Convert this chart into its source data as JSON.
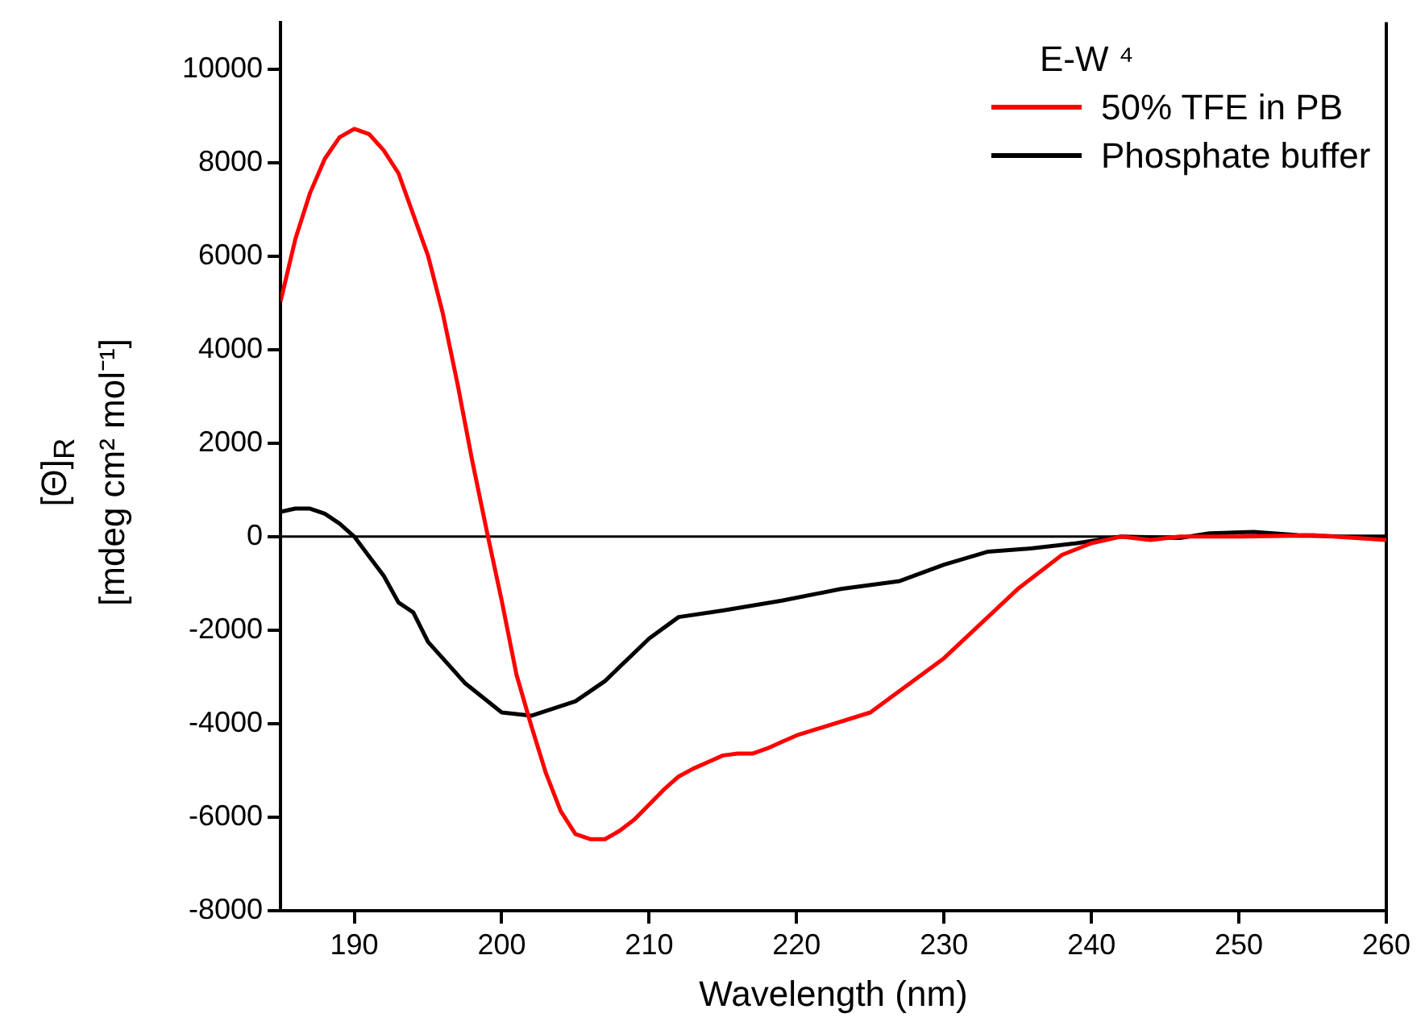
{
  "chart_data": {
    "type": "line",
    "xlabel": "Wavelength (nm)",
    "ylabel": "[Θ]$_{R}$\n[mdeg cm² mol⁻¹]",
    "legend_title": "E-W ⁴",
    "legend": "top right",
    "xlim": [
      185,
      260
    ],
    "xticks": [
      190,
      200,
      210,
      220,
      230,
      240,
      250,
      260
    ],
    "ylim": [
      -8000,
      11000
    ],
    "yticks": [
      -8000,
      -6000,
      -4000,
      -2000,
      0,
      2000,
      4000,
      6000,
      8000,
      10000
    ],
    "grid": false,
    "marker": "none",
    "line_style": "solid",
    "ref_lines": [
      {
        "axis": "y",
        "value": 0,
        "color": "#000000"
      }
    ],
    "series": [
      {
        "name": "50% TFE in PB",
        "color": "#ff0000",
        "x": [
          185,
          186,
          187,
          188,
          189,
          190,
          191,
          192,
          193,
          194,
          195,
          196,
          197,
          198,
          199,
          200,
          201,
          202,
          203,
          204,
          205,
          206,
          207,
          208,
          209,
          210,
          211,
          212,
          213,
          214,
          215,
          216,
          217,
          218,
          219,
          220,
          225,
          230,
          235,
          238,
          240,
          242,
          244,
          246,
          250,
          255,
          260
        ],
        "values": [
          5030,
          6360,
          7350,
          8080,
          8540,
          8720,
          8610,
          8260,
          7770,
          6890,
          6010,
          4780,
          3270,
          1620,
          100,
          -1370,
          -2950,
          -4040,
          -5060,
          -5870,
          -6360,
          -6470,
          -6470,
          -6290,
          -6050,
          -5730,
          -5410,
          -5130,
          -4960,
          -4820,
          -4680,
          -4640,
          -4640,
          -4530,
          -4390,
          -4250,
          -3760,
          -2600,
          -1120,
          -390,
          -140,
          0,
          -70,
          0,
          0,
          30,
          -70
        ]
      },
      {
        "name": "Phosphate buffer",
        "color": "#000000",
        "x": [
          185,
          186,
          187,
          188,
          189,
          190,
          191,
          192,
          193,
          194,
          195,
          197.5,
          200,
          202,
          205,
          207,
          210,
          212,
          215,
          219,
          223,
          227,
          230,
          233,
          236,
          239,
          242,
          246,
          248,
          251,
          254,
          257,
          260
        ],
        "values": [
          530,
          600,
          600,
          490,
          280,
          0,
          -420,
          -840,
          -1410,
          -1620,
          -2250,
          -3130,
          -3760,
          -3830,
          -3520,
          -3090,
          -2180,
          -1720,
          -1580,
          -1370,
          -1120,
          -950,
          -600,
          -320,
          -250,
          -140,
          0,
          -30,
          70,
          100,
          30,
          0,
          0
        ]
      }
    ]
  }
}
